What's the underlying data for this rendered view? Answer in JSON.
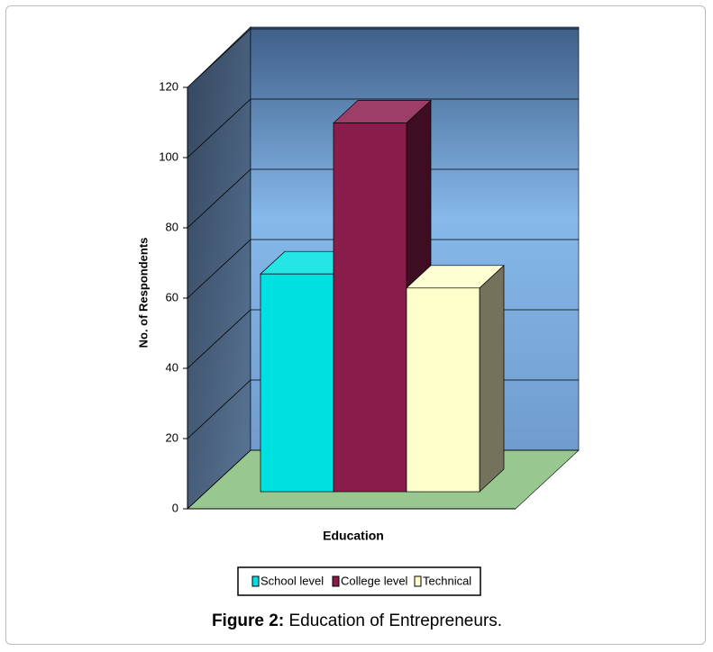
{
  "chart_data": {
    "type": "bar3d",
    "y_label": "No. of Respondents",
    "x_label": "Education",
    "categories": [
      null
    ],
    "series": [
      {
        "name": "School level",
        "color": "#00e0e0",
        "values": [
          62
        ]
      },
      {
        "name": "College level",
        "color": "#8a1c4c",
        "values": [
          105
        ]
      },
      {
        "name": "Technical",
        "color": "#ffffcc",
        "values": [
          58
        ]
      }
    ],
    "ylim": [
      0,
      120
    ],
    "yticks": [
      0,
      20,
      40,
      60,
      80,
      100,
      120
    ],
    "grid": true,
    "legend": "bottom",
    "caption_label": "Figure 2:",
    "caption": "Education of Entrepreneurs."
  }
}
